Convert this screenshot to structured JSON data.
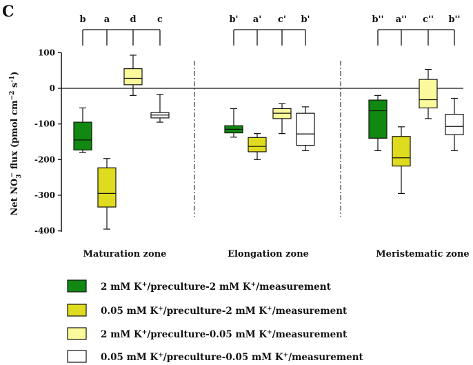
{
  "panel_label": "C",
  "chart_data": {
    "type": "boxplot",
    "ylabel_parts": {
      "pre": "Net NO",
      "sub": "3",
      "sup": "−",
      "mid": " flux (pmol cm",
      "sup2": "−2",
      "mid2": " s",
      "sup3": "-1",
      "post": ")"
    },
    "ylim": [
      -400,
      100
    ],
    "yticks": [
      100,
      0,
      -100,
      -200,
      -300,
      -400
    ],
    "ytick_labels": [
      "100",
      "0",
      "-100",
      "-200",
      "-300",
      "-400"
    ],
    "groups": [
      {
        "name": "Maturation zone",
        "letters": [
          "b",
          "a",
          "d",
          "c"
        ],
        "boxes": [
          {
            "series": 0,
            "min": -180,
            "q1": -173,
            "median": -145,
            "q3": -95,
            "max": -55
          },
          {
            "series": 1,
            "min": -395,
            "q1": -333,
            "median": -295,
            "q3": -223,
            "max": -197
          },
          {
            "series": 2,
            "min": -20,
            "q1": 10,
            "median": 28,
            "q3": 55,
            "max": 93
          },
          {
            "series": 3,
            "min": -95,
            "q1": -83,
            "median": -75,
            "q3": -68,
            "max": -17
          }
        ]
      },
      {
        "name": "Elongation zone",
        "letters": [
          "b'",
          "a'",
          "c'",
          "b'"
        ],
        "boxes": [
          {
            "series": 0,
            "min": -137,
            "q1": -125,
            "median": -115,
            "q3": -105,
            "max": -57
          },
          {
            "series": 1,
            "min": -200,
            "q1": -178,
            "median": -163,
            "q3": -138,
            "max": -127
          },
          {
            "series": 2,
            "min": -127,
            "q1": -85,
            "median": -70,
            "q3": -57,
            "max": -43
          },
          {
            "series": 3,
            "min": -175,
            "q1": -160,
            "median": -128,
            "q3": -70,
            "max": -52
          }
        ]
      },
      {
        "name": "Meristematic zone",
        "letters": [
          "b''",
          "a''",
          "c''",
          "b''"
        ],
        "boxes": [
          {
            "series": 0,
            "min": -175,
            "q1": -140,
            "median": -63,
            "q3": -33,
            "max": -20
          },
          {
            "series": 1,
            "min": -295,
            "q1": -218,
            "median": -195,
            "q3": -135,
            "max": -108
          },
          {
            "series": 2,
            "min": -85,
            "q1": -55,
            "median": -32,
            "q3": 25,
            "max": 53
          },
          {
            "series": 3,
            "min": -175,
            "q1": -130,
            "median": -107,
            "q3": -73,
            "max": -28
          }
        ]
      }
    ],
    "series": [
      {
        "name": "2 mM K+/preculture-2 mM K+/measurement",
        "color": "#118811"
      },
      {
        "name": "0.05 mM K+/preculture-2 mM K+/measurement",
        "color": "#dfdb1e"
      },
      {
        "name": "2 mM K+/preculture-0.05 mM K+/measurement",
        "color": "#fafa9c"
      },
      {
        "name": "0.05 mM K+/preculture-0.05 mM K+/measurement",
        "color": "#ffffff"
      }
    ],
    "legend": [
      {
        "a": "2 mM K",
        "b": "/preculture-2 mM K",
        "c": "/measurement"
      },
      {
        "a": "0.05 mM K",
        "b": "/preculture-2 mM K",
        "c": "/measurement"
      },
      {
        "a": "2 mM K",
        "b": "/preculture-0.05 mM K",
        "c": "/measurement"
      },
      {
        "a": "0.05 mM K",
        "b": "/preculture-0.05 mM K",
        "c": "/measurement"
      }
    ],
    "legend_sup": "+",
    "zero_line": true,
    "group_separators": "dash-dot"
  }
}
